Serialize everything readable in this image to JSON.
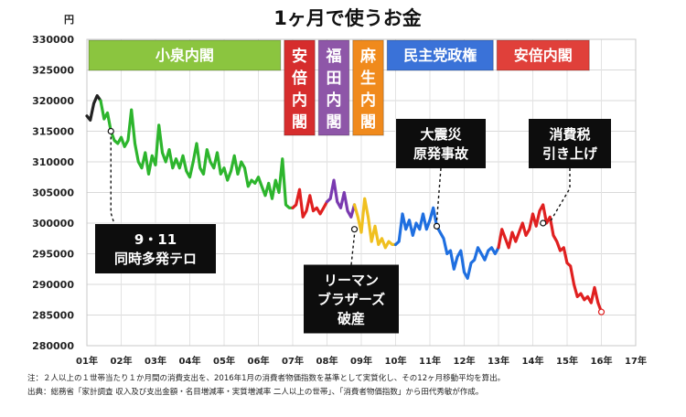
{
  "chart_data": {
    "type": "line",
    "title": "1ヶ月で使うお金",
    "ylabel": "円",
    "ylim": [
      280000,
      330000
    ],
    "y_ticks": [
      {
        "value": 330000,
        "label": "330000"
      },
      {
        "value": 325000,
        "label": "325000"
      },
      {
        "value": 320000,
        "label": "320000"
      },
      {
        "value": 315000,
        "label": "315000"
      },
      {
        "value": 310000,
        "label": "310000"
      },
      {
        "value": 305000,
        "label": "305000"
      },
      {
        "value": 300000,
        "label": "300000"
      },
      {
        "value": 295000,
        "label": "295000"
      },
      {
        "value": 290000,
        "label": "290000"
      },
      {
        "value": 285000,
        "label": "285000"
      },
      {
        "value": 280000,
        "label": "280000"
      }
    ],
    "xlim": [
      2001,
      2017
    ],
    "x_ticks": [
      {
        "value": 2001,
        "label": "01年"
      },
      {
        "value": 2002,
        "label": "02年"
      },
      {
        "value": 2003,
        "label": "03年"
      },
      {
        "value": 2004,
        "label": "04年"
      },
      {
        "value": 2005,
        "label": "05年"
      },
      {
        "value": 2006,
        "label": "06年"
      },
      {
        "value": 2007,
        "label": "07年"
      },
      {
        "value": 2008,
        "label": "08年"
      },
      {
        "value": 2009,
        "label": "09年"
      },
      {
        "value": 2010,
        "label": "10年"
      },
      {
        "value": 2011,
        "label": "11年"
      },
      {
        "value": 2012,
        "label": "12年"
      },
      {
        "value": 2013,
        "label": "13年"
      },
      {
        "value": 2014,
        "label": "14年"
      },
      {
        "value": 2015,
        "label": "15年"
      },
      {
        "value": 2016,
        "label": "16年"
      },
      {
        "value": 2017,
        "label": "17年"
      }
    ],
    "grid": true,
    "series": [
      {
        "color": "#222222",
        "points": [
          [
            2001.0,
            317500
          ],
          [
            2001.1,
            316800
          ],
          [
            2001.2,
            319500
          ],
          [
            2001.3,
            320800
          ],
          [
            2001.4,
            320000
          ]
        ]
      },
      {
        "color": "#2db52d",
        "points": [
          [
            2001.4,
            320000
          ],
          [
            2001.5,
            317000
          ],
          [
            2001.6,
            318000
          ],
          [
            2001.7,
            315000
          ],
          [
            2001.8,
            313500
          ],
          [
            2001.9,
            313000
          ],
          [
            2002.0,
            314000
          ],
          [
            2002.1,
            312500
          ],
          [
            2002.2,
            313500
          ],
          [
            2002.3,
            318500
          ],
          [
            2002.4,
            313000
          ],
          [
            2002.5,
            310000
          ],
          [
            2002.6,
            309000
          ],
          [
            2002.7,
            311500
          ],
          [
            2002.8,
            308000
          ],
          [
            2002.9,
            311000
          ],
          [
            2003.0,
            309500
          ],
          [
            2003.1,
            316000
          ],
          [
            2003.2,
            311500
          ],
          [
            2003.3,
            310000
          ],
          [
            2003.4,
            312000
          ],
          [
            2003.5,
            309000
          ],
          [
            2003.6,
            310500
          ],
          [
            2003.7,
            309000
          ],
          [
            2003.8,
            311000
          ],
          [
            2003.9,
            308500
          ],
          [
            2004.0,
            307500
          ],
          [
            2004.1,
            310000
          ],
          [
            2004.2,
            313000
          ],
          [
            2004.3,
            309000
          ],
          [
            2004.4,
            308000
          ],
          [
            2004.5,
            312000
          ],
          [
            2004.6,
            310000
          ],
          [
            2004.7,
            309000
          ],
          [
            2004.8,
            311500
          ],
          [
            2004.9,
            308000
          ],
          [
            2005.0,
            309000
          ],
          [
            2005.1,
            307000
          ],
          [
            2005.2,
            308500
          ],
          [
            2005.3,
            311000
          ],
          [
            2005.4,
            308000
          ],
          [
            2005.5,
            310000
          ],
          [
            2005.6,
            309000
          ],
          [
            2005.7,
            306000
          ],
          [
            2005.8,
            307000
          ],
          [
            2005.9,
            306500
          ],
          [
            2006.0,
            307500
          ],
          [
            2006.1,
            306000
          ],
          [
            2006.2,
            304500
          ],
          [
            2006.3,
            306500
          ],
          [
            2006.4,
            304000
          ],
          [
            2006.5,
            307000
          ],
          [
            2006.6,
            305000
          ],
          [
            2006.7,
            310500
          ],
          [
            2006.8,
            303000
          ],
          [
            2006.9,
            302500
          ],
          [
            2007.0,
            302500
          ]
        ]
      },
      {
        "color": "#e02020",
        "points": [
          [
            2007.0,
            302500
          ],
          [
            2007.1,
            303000
          ],
          [
            2007.2,
            305500
          ],
          [
            2007.3,
            301000
          ],
          [
            2007.4,
            302000
          ],
          [
            2007.5,
            304500
          ],
          [
            2007.6,
            302000
          ],
          [
            2007.7,
            302500
          ],
          [
            2007.8,
            301500
          ],
          [
            2007.9,
            302500
          ],
          [
            2008.0,
            303500
          ]
        ]
      },
      {
        "color": "#7a3ab0",
        "points": [
          [
            2008.0,
            303500
          ],
          [
            2008.1,
            304000
          ],
          [
            2008.2,
            307000
          ],
          [
            2008.3,
            303500
          ],
          [
            2008.4,
            302500
          ],
          [
            2008.5,
            305000
          ],
          [
            2008.6,
            302000
          ],
          [
            2008.7,
            301000
          ],
          [
            2008.8,
            303000
          ]
        ]
      },
      {
        "color": "#f0c020",
        "points": [
          [
            2008.8,
            303000
          ],
          [
            2008.9,
            301000
          ],
          [
            2009.0,
            298500
          ],
          [
            2009.1,
            304000
          ],
          [
            2009.2,
            301000
          ],
          [
            2009.3,
            297000
          ],
          [
            2009.4,
            299500
          ],
          [
            2009.5,
            296500
          ],
          [
            2009.6,
            297500
          ],
          [
            2009.7,
            296000
          ],
          [
            2009.8,
            297000
          ],
          [
            2009.9,
            296500
          ],
          [
            2010.0,
            296500
          ]
        ]
      },
      {
        "color": "#1f6fe0",
        "points": [
          [
            2010.0,
            296500
          ],
          [
            2010.1,
            297000
          ],
          [
            2010.2,
            301500
          ],
          [
            2010.3,
            299000
          ],
          [
            2010.4,
            300500
          ],
          [
            2010.5,
            298000
          ],
          [
            2010.6,
            300000
          ],
          [
            2010.7,
            299000
          ],
          [
            2010.8,
            301500
          ],
          [
            2010.9,
            299000
          ],
          [
            2011.0,
            300500
          ],
          [
            2011.1,
            302500
          ],
          [
            2011.2,
            299500
          ],
          [
            2011.3,
            298500
          ],
          [
            2011.4,
            297500
          ],
          [
            2011.5,
            295000
          ],
          [
            2011.6,
            295500
          ],
          [
            2011.7,
            292500
          ],
          [
            2011.8,
            294500
          ],
          [
            2011.9,
            295500
          ],
          [
            2012.0,
            292000
          ],
          [
            2012.1,
            291000
          ],
          [
            2012.2,
            293500
          ],
          [
            2012.3,
            294000
          ],
          [
            2012.4,
            296000
          ],
          [
            2012.5,
            295000
          ],
          [
            2012.6,
            294000
          ],
          [
            2012.7,
            295500
          ],
          [
            2012.8,
            296000
          ],
          [
            2012.9,
            295000
          ],
          [
            2013.0,
            296000
          ]
        ]
      },
      {
        "color": "#e02020",
        "points": [
          [
            2013.0,
            296000
          ],
          [
            2013.1,
            299000
          ],
          [
            2013.2,
            297500
          ],
          [
            2013.3,
            296000
          ],
          [
            2013.4,
            298500
          ],
          [
            2013.5,
            297000
          ],
          [
            2013.6,
            298500
          ],
          [
            2013.7,
            300000
          ],
          [
            2013.8,
            298000
          ],
          [
            2013.9,
            299000
          ],
          [
            2014.0,
            301500
          ],
          [
            2014.1,
            299500
          ],
          [
            2014.2,
            302000
          ],
          [
            2014.3,
            303000
          ],
          [
            2014.4,
            300000
          ],
          [
            2014.5,
            301000
          ],
          [
            2014.6,
            298000
          ],
          [
            2014.7,
            297000
          ],
          [
            2014.8,
            295500
          ],
          [
            2014.9,
            296000
          ],
          [
            2015.0,
            293500
          ],
          [
            2015.1,
            293000
          ],
          [
            2015.2,
            290000
          ],
          [
            2015.3,
            288000
          ],
          [
            2015.4,
            288500
          ],
          [
            2015.5,
            287500
          ],
          [
            2015.6,
            288000
          ],
          [
            2015.7,
            287000
          ],
          [
            2015.8,
            289500
          ],
          [
            2015.9,
            287000
          ],
          [
            2016.0,
            285500
          ]
        ]
      }
    ],
    "governments": [
      {
        "label": "小泉内閣",
        "start": 2001.0,
        "end": 2006.7,
        "color": "#8bc53f",
        "vertical": false
      },
      {
        "label": "安倍内閣",
        "start": 2006.7,
        "end": 2007.7,
        "color": "#d62d2d",
        "vertical": true
      },
      {
        "label": "福田内閣",
        "start": 2007.7,
        "end": 2008.7,
        "color": "#8e56a8",
        "vertical": true
      },
      {
        "label": "麻生内閣",
        "start": 2008.7,
        "end": 2009.7,
        "color": "#f08a1c",
        "vertical": true
      },
      {
        "label": "民主党政権",
        "start": 2009.7,
        "end": 2012.9,
        "color": "#3a72d8",
        "vertical": false
      },
      {
        "label": "安倍内閣",
        "start": 2012.9,
        "end": 2015.7,
        "color": "#e0403a",
        "vertical": false
      }
    ],
    "annotations": [
      {
        "lines": [
          "9・11",
          "同時多発テロ"
        ],
        "x": 2001.7,
        "y": 315000,
        "box": "bl"
      },
      {
        "lines": [
          "リーマン",
          "ブラザーズ",
          "破産"
        ],
        "x": 2008.8,
        "y": 299000,
        "box": "bc"
      },
      {
        "lines": [
          "大震災",
          "原発事故"
        ],
        "x": 2011.2,
        "y": 299500,
        "box": "tc"
      },
      {
        "lines": [
          "消費税",
          "引き上げ"
        ],
        "x": 2014.3,
        "y": 300000,
        "box": "tr"
      }
    ]
  },
  "notes": {
    "line1": "注：２人以上の１世帯当たり１か月間の消費支出を、2016年1月の消費者物価指数を基準として実質化し、その12ヶ月移動平均を算出。",
    "line2": "出典：総務省「家計調査 収入及び支出金額・名目増減率・実質増減率 二人以上の世帯」、「消費者物価指数」から田代秀敏が作成。"
  }
}
